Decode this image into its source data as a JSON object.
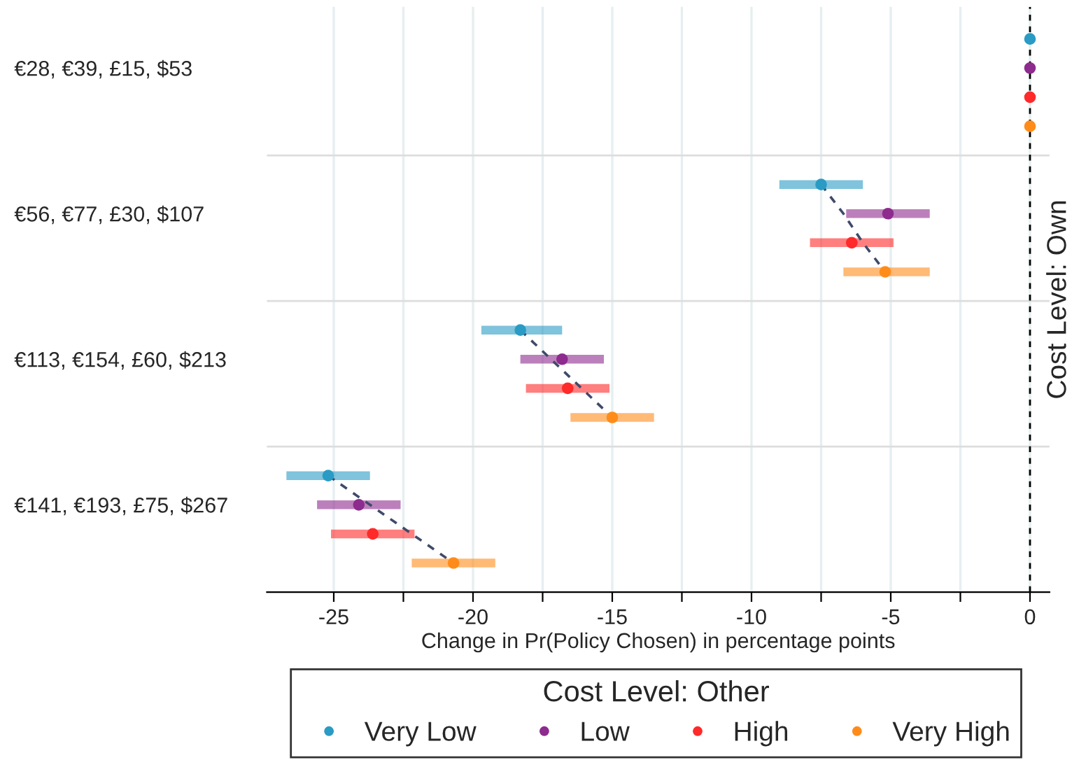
{
  "chart_data": {
    "type": "scatter",
    "orientation": "horizontal",
    "categories": [
      null,
      "€28, €39, £15, $53",
      null,
      null,
      null,
      null,
      "€56, €77, £30, $107",
      null,
      null,
      null,
      null,
      "€113, €154, £60, $213",
      null,
      null,
      null,
      null,
      "€141, €193, £75, $267",
      null,
      null
    ],
    "xlabel": "Change in Pr(Policy Chosen) in percentage points",
    "y2label": "Cost Level: Own",
    "legend_title": "Cost Level: Other",
    "xlim": [
      -27.4,
      0.7
    ],
    "xticks": [
      -25,
      {
        "value": -22.5,
        "label": null
      },
      -20,
      {
        "value": -17.5,
        "label": null
      },
      -15,
      {
        "value": -12.5,
        "label": null
      },
      -10,
      {
        "value": -7.5,
        "label": null
      },
      -5,
      {
        "value": -2.5,
        "label": null
      },
      0
    ],
    "grid": true,
    "legend": "bottom",
    "marker": "circle",
    "ref_lines": [
      {
        "axis": "x",
        "value": 0,
        "color": "#000000",
        "line_style": "dashed"
      }
    ],
    "series": [
      {
        "name": "Very Low",
        "color": "#2a9bc4",
        "values": [
          0,
          null,
          null,
          null,
          null,
          -7.5,
          null,
          null,
          null,
          null,
          -18.3,
          null,
          null,
          null,
          null,
          -25.2,
          null,
          null,
          null
        ],
        "errors": [
          null,
          null,
          null,
          null,
          null,
          [
            -9.0,
            -6.0
          ],
          null,
          null,
          null,
          null,
          [
            -19.7,
            -16.8
          ],
          null,
          null,
          null,
          null,
          [
            -26.7,
            -23.7
          ],
          null,
          null,
          null
        ]
      },
      {
        "name": "Low",
        "color": "#8e2b8e",
        "values": [
          null,
          0,
          null,
          null,
          null,
          null,
          -5.1,
          null,
          null,
          null,
          null,
          -16.8,
          null,
          null,
          null,
          null,
          -24.1,
          null,
          null
        ],
        "errors": [
          null,
          null,
          null,
          null,
          null,
          null,
          [
            -6.6,
            -3.6
          ],
          null,
          null,
          null,
          null,
          [
            -18.3,
            -15.3
          ],
          null,
          null,
          null,
          null,
          [
            -25.6,
            -22.6
          ],
          null,
          null
        ]
      },
      {
        "name": "High",
        "color": "#ff2a2a",
        "values": [
          null,
          null,
          0,
          null,
          null,
          null,
          null,
          -6.4,
          null,
          null,
          null,
          null,
          -16.6,
          null,
          null,
          null,
          null,
          -23.6,
          null
        ],
        "errors": [
          null,
          null,
          null,
          null,
          null,
          null,
          null,
          [
            -7.9,
            -4.9
          ],
          null,
          null,
          null,
          null,
          [
            -18.1,
            -15.1
          ],
          null,
          null,
          null,
          null,
          [
            -25.1,
            -22.1
          ],
          null
        ]
      },
      {
        "name": "Very High",
        "color": "#ff8c1a",
        "values": [
          null,
          null,
          null,
          0,
          null,
          null,
          null,
          null,
          -5.2,
          null,
          null,
          null,
          null,
          -15.0,
          null,
          null,
          null,
          null,
          -20.7
        ],
        "errors": [
          null,
          null,
          null,
          null,
          null,
          null,
          null,
          null,
          [
            -6.7,
            -3.6
          ],
          null,
          null,
          null,
          null,
          [
            -16.5,
            -13.5
          ],
          null,
          null,
          null,
          null,
          [
            -22.2,
            -19.2
          ]
        ]
      },
      {
        "type": "line",
        "color": "#3f4a6a",
        "line_style": "dashed",
        "marker": "none",
        "values": [
          null,
          null,
          null,
          null,
          null,
          -7.5,
          -6.7,
          -6.0,
          -5.2,
          null,
          -18.3,
          -17.2,
          -16.1,
          -15.0,
          null,
          -25.2,
          -23.7,
          -22.2,
          -20.7
        ]
      }
    ]
  }
}
